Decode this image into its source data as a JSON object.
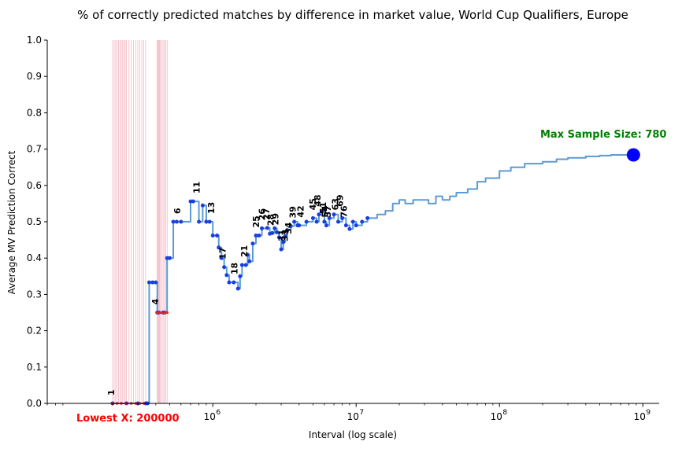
{
  "chart_data": {
    "type": "line",
    "title": "% of correctly predicted matches by difference in market value, World Cup Qualifiers, Europe",
    "xlabel": "Interval (log scale)",
    "ylabel": "Average MV Prediction Correct",
    "xscale": "log",
    "xlim": [
      70000,
      1300000000
    ],
    "ylim": [
      0,
      1.0
    ],
    "grid": false,
    "y_ticks": [
      "0.0",
      "0.1",
      "0.2",
      "0.3",
      "0.4",
      "0.5",
      "0.6",
      "0.7",
      "0.8",
      "0.9",
      "1.0"
    ],
    "x_ticks": [
      {
        "value": 1000000,
        "base": "10",
        "exp": "6"
      },
      {
        "value": 10000000,
        "base": "10",
        "exp": "7"
      },
      {
        "value": 100000000,
        "base": "10",
        "exp": "8"
      },
      {
        "value": 1000000000,
        "base": "10",
        "exp": "9"
      }
    ],
    "colors": {
      "line": "#5b9bd5",
      "marker": "#1a3fe0",
      "low_marker": "#d62728",
      "band": "#f4b6c2",
      "max_marker": "#0000ff",
      "max_text": "#008000",
      "low_text": "#ff0000"
    },
    "series": [
      {
        "x": [
          200000,
          250000,
          300000,
          340000,
          350000,
          360000,
          380000,
          400000,
          410000,
          420000,
          450000,
          460000,
          480000,
          500000,
          530000,
          560000,
          600000,
          700000,
          730000,
          800000,
          850000,
          900000,
          950000,
          1000000,
          1070000,
          1100000,
          1150000,
          1200000,
          1250000,
          1300000,
          1400000,
          1500000,
          1550000,
          1600000,
          1700000,
          1750000,
          1800000,
          1900000,
          2000000,
          2100000,
          2200000,
          2400000,
          2500000,
          2600000,
          2700000,
          2800000,
          2900000,
          3000000,
          3100000,
          3200000,
          3300000,
          3500000,
          3700000,
          3900000,
          4000000,
          4500000,
          5000000,
          5300000,
          5500000,
          5800000,
          6000000,
          6200000,
          6500000,
          7000000,
          7500000,
          8000000,
          8500000,
          9000000,
          9500000,
          10000000,
          11000000,
          12000000,
          14000000,
          16000000,
          18000000,
          20000000,
          22000000,
          25000000,
          28000000,
          32000000,
          36000000,
          40000000,
          45000000,
          50000000,
          60000000,
          70000000,
          80000000,
          100000000,
          120000000,
          150000000,
          200000000,
          250000000,
          300000000,
          400000000,
          500000000,
          600000000,
          700000000,
          860000000
        ],
        "y": [
          0.0,
          0.0,
          0.0,
          0.0,
          0.0,
          0.333,
          0.333,
          0.333,
          0.25,
          0.25,
          0.25,
          0.25,
          0.4,
          0.4,
          0.5,
          0.5,
          0.5,
          0.556,
          0.556,
          0.5,
          0.545,
          0.5,
          0.5,
          0.462,
          0.462,
          0.429,
          0.4,
          0.375,
          0.353,
          0.333,
          0.333,
          0.316,
          0.35,
          0.381,
          0.381,
          0.409,
          0.391,
          0.44,
          0.462,
          0.462,
          0.482,
          0.483,
          0.467,
          0.469,
          0.482,
          0.471,
          0.457,
          0.424,
          0.444,
          0.46,
          0.477,
          0.488,
          0.5,
          0.49,
          0.49,
          0.5,
          0.51,
          0.5,
          0.52,
          0.53,
          0.5,
          0.49,
          0.51,
          0.52,
          0.5,
          0.51,
          0.49,
          0.48,
          0.5,
          0.49,
          0.5,
          0.51,
          0.52,
          0.53,
          0.55,
          0.56,
          0.55,
          0.56,
          0.56,
          0.55,
          0.57,
          0.56,
          0.57,
          0.58,
          0.59,
          0.61,
          0.62,
          0.64,
          0.65,
          0.66,
          0.665,
          0.672,
          0.676,
          0.68,
          0.682,
          0.684,
          0.684,
          0.684
        ]
      }
    ],
    "low_markers_x": [
      200000,
      215000,
      230000,
      250000,
      270000,
      290000,
      310000,
      330000,
      410000,
      420000,
      440000,
      460000,
      480000
    ],
    "band_lines_x": [
      200000,
      205000,
      210000,
      215000,
      220000,
      225000,
      230000,
      235000,
      240000,
      245000,
      250000,
      260000,
      270000,
      280000,
      290000,
      300000,
      310000,
      320000,
      330000,
      340000,
      410000,
      415000,
      420000,
      425000,
      430000,
      440000,
      450000,
      460000,
      470000,
      480000
    ],
    "point_labels": [
      {
        "text": "1",
        "x": 200000,
        "y": 0.0
      },
      {
        "text": "4",
        "x": 405000,
        "y": 0.25
      },
      {
        "text": "6",
        "x": 580000,
        "y": 0.5
      },
      {
        "text": "11",
        "x": 790000,
        "y": 0.556
      },
      {
        "text": "13",
        "x": 1000000,
        "y": 0.5
      },
      {
        "text": "17",
        "x": 1200000,
        "y": 0.375
      },
      {
        "text": "18",
        "x": 1450000,
        "y": 0.333
      },
      {
        "text": "21",
        "x": 1700000,
        "y": 0.381
      },
      {
        "text": "25",
        "x": 2050000,
        "y": 0.462
      },
      {
        "text": "26",
        "x": 2250000,
        "y": 0.482
      },
      {
        "text": "27",
        "x": 2420000,
        "y": 0.483
      },
      {
        "text": "28",
        "x": 2600000,
        "y": 0.467
      },
      {
        "text": "29",
        "x": 2800000,
        "y": 0.469
      },
      {
        "text": "31",
        "x": 3100000,
        "y": 0.424
      },
      {
        "text": "33",
        "x": 3250000,
        "y": 0.424
      },
      {
        "text": "34",
        "x": 3450000,
        "y": 0.444
      },
      {
        "text": "39",
        "x": 3700000,
        "y": 0.488
      },
      {
        "text": "42",
        "x": 4200000,
        "y": 0.49
      },
      {
        "text": "45",
        "x": 5100000,
        "y": 0.51
      },
      {
        "text": "48",
        "x": 5500000,
        "y": 0.52
      },
      {
        "text": "51",
        "x": 6000000,
        "y": 0.5
      },
      {
        "text": "54",
        "x": 6200000,
        "y": 0.49
      },
      {
        "text": "57",
        "x": 6500000,
        "y": 0.49
      },
      {
        "text": "63",
        "x": 7300000,
        "y": 0.51
      },
      {
        "text": "69",
        "x": 7900000,
        "y": 0.52
      },
      {
        "text": "76",
        "x": 8400000,
        "y": 0.49
      }
    ],
    "max_point": {
      "x": 860000000,
      "y": 0.684,
      "label": "Max Sample Size: 780"
    },
    "low_label": "Lowest X: 200000"
  }
}
